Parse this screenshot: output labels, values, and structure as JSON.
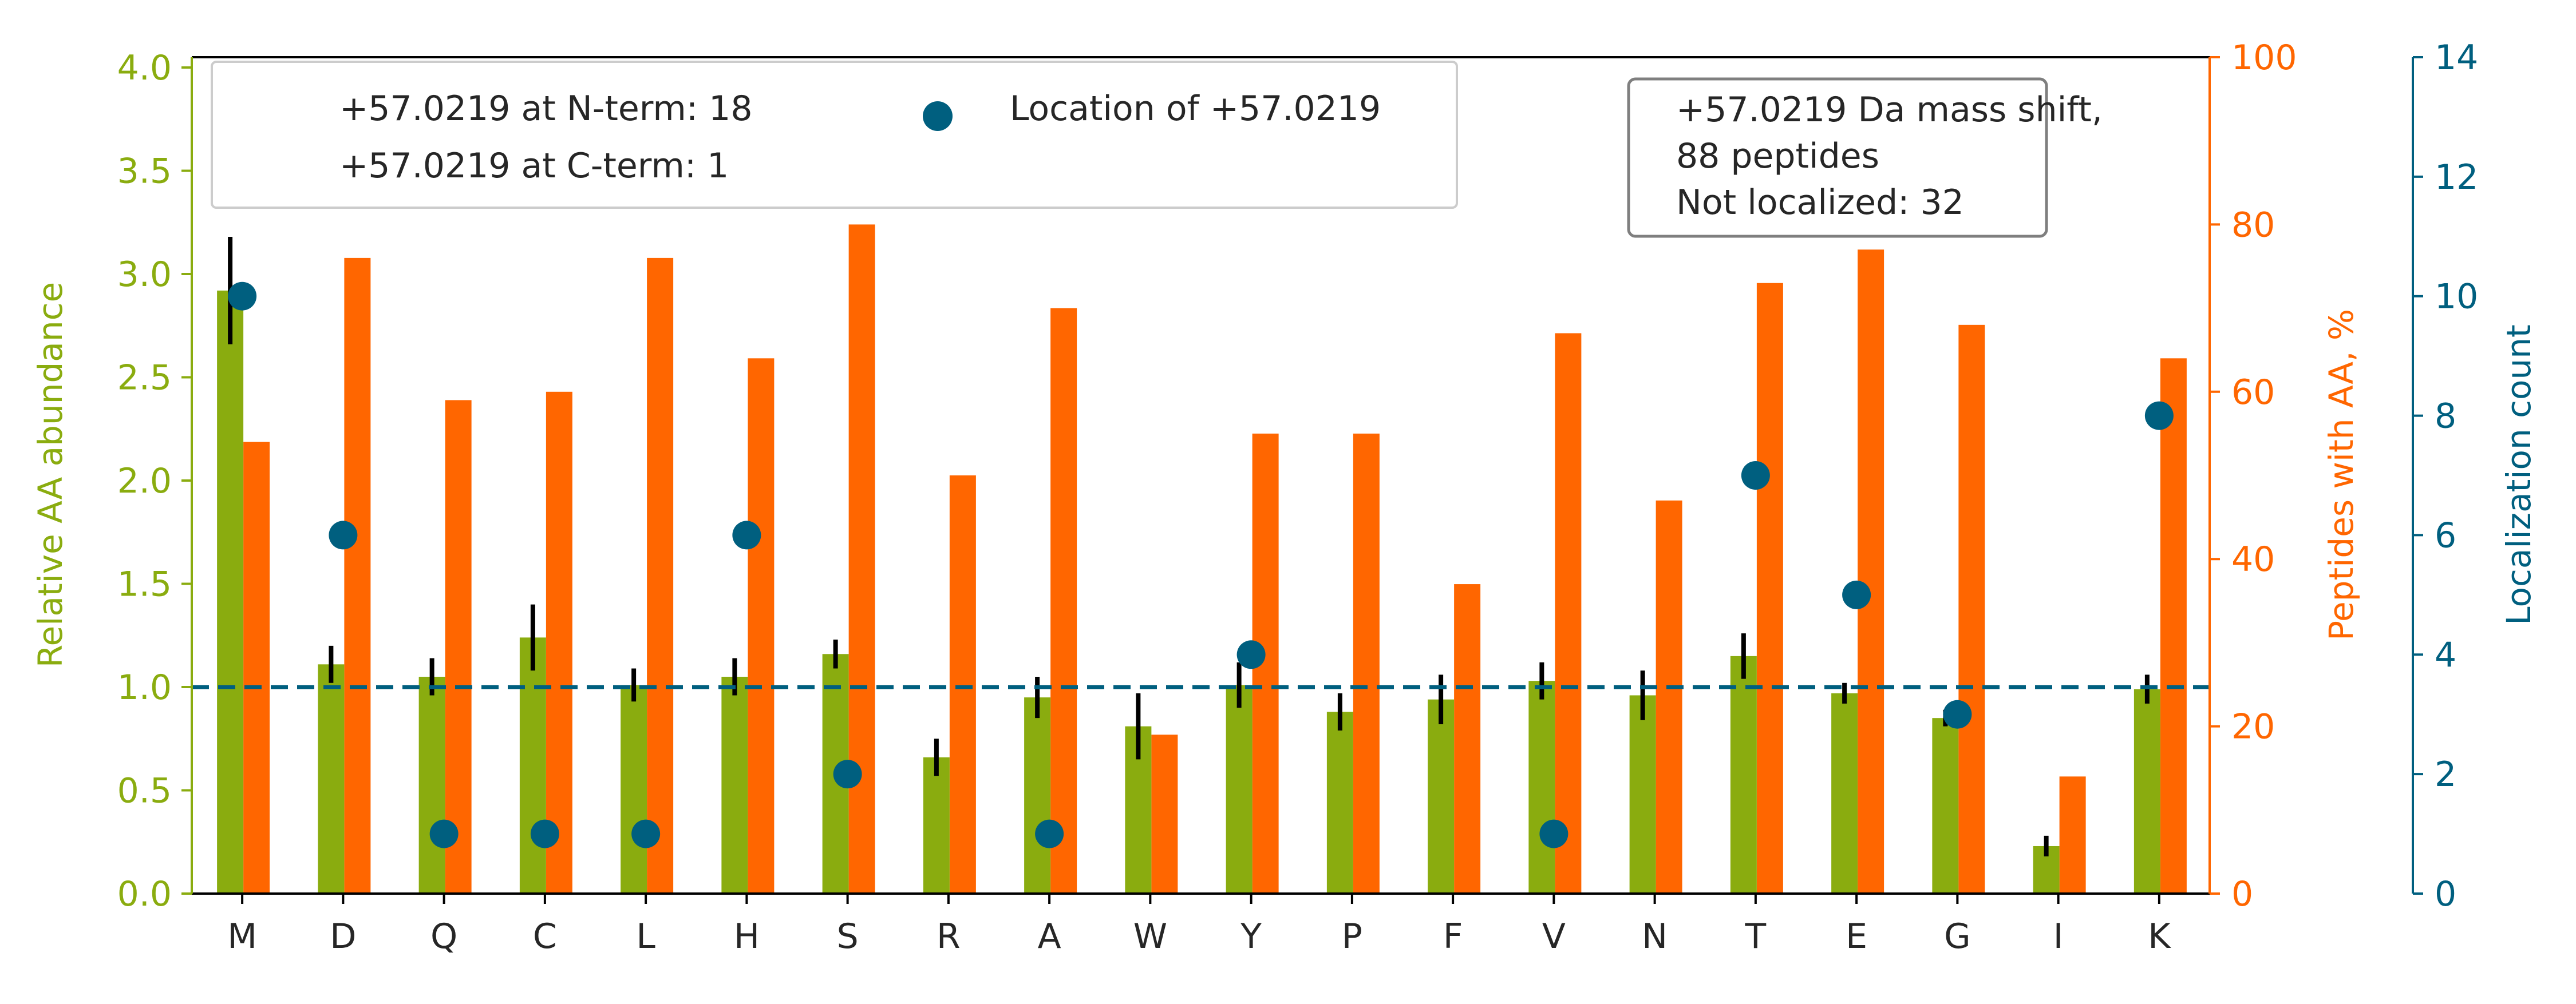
{
  "chart_data": {
    "type": "bar",
    "categories": [
      "M",
      "D",
      "Q",
      "C",
      "L",
      "H",
      "S",
      "R",
      "A",
      "W",
      "Y",
      "P",
      "F",
      "V",
      "N",
      "T",
      "E",
      "G",
      "I",
      "K"
    ],
    "left_axis": {
      "label": "Relative AA abundance",
      "ylim": [
        0,
        4.05
      ],
      "ticks": [
        "0.0",
        "0.5",
        "1.0",
        "1.5",
        "2.0",
        "2.5",
        "3.0",
        "3.5",
        "4.0"
      ],
      "color": "#8aac0f"
    },
    "middle_axis": {
      "label": "Peptides with AA, %",
      "ylim": [
        0,
        100
      ],
      "ticks": [
        "0",
        "20",
        "40",
        "60",
        "80",
        "100"
      ],
      "color": "#ff6600"
    },
    "right_axis": {
      "label": "Localization count",
      "ylim": [
        0,
        14
      ],
      "ticks": [
        "0",
        "2",
        "4",
        "6",
        "8",
        "10",
        "12",
        "14"
      ],
      "color": "#005f7f"
    },
    "series": [
      {
        "axis": "left",
        "kind": "bar",
        "color": "#8aac0f",
        "values": [
          2.92,
          1.11,
          1.05,
          1.24,
          1.01,
          1.05,
          1.16,
          0.66,
          0.95,
          0.81,
          1.01,
          0.88,
          0.94,
          1.03,
          0.96,
          1.15,
          0.97,
          0.85,
          0.23,
          0.99
        ],
        "errors": [
          0.26,
          0.09,
          0.09,
          0.16,
          0.08,
          0.09,
          0.07,
          0.09,
          0.1,
          0.16,
          0.11,
          0.09,
          0.12,
          0.09,
          0.12,
          0.11,
          0.05,
          0.04,
          0.05,
          0.07
        ]
      },
      {
        "axis": "middle",
        "kind": "bar",
        "color": "#ff6600",
        "values": [
          54,
          76,
          59,
          60,
          76,
          64,
          80,
          50,
          70,
          19,
          55,
          55,
          37,
          67,
          47,
          73,
          77,
          68,
          14,
          64
        ]
      },
      {
        "axis": "right",
        "kind": "scatter",
        "color": "#005f7f",
        "values": [
          10,
          6,
          1,
          1,
          1,
          6,
          2,
          null,
          1,
          null,
          4,
          null,
          null,
          1,
          null,
          7,
          5,
          3,
          null,
          8
        ]
      }
    ],
    "reference_line": {
      "axis": "left",
      "value": 1.0,
      "style": "dashed",
      "color": "#005f7f"
    },
    "legend": {
      "position": "top-left",
      "entries": [
        {
          "label": "+57.0219 at N-term: 18",
          "marker": "none"
        },
        {
          "label": "+57.0219 at C-term: 1",
          "marker": "none"
        },
        {
          "label": "Location of +57.0219",
          "marker": "circle"
        }
      ]
    },
    "annotation": {
      "position": "top-right",
      "lines": [
        "+57.0219 Da mass shift,",
        "88 peptides",
        "Not localized: 32"
      ]
    }
  }
}
